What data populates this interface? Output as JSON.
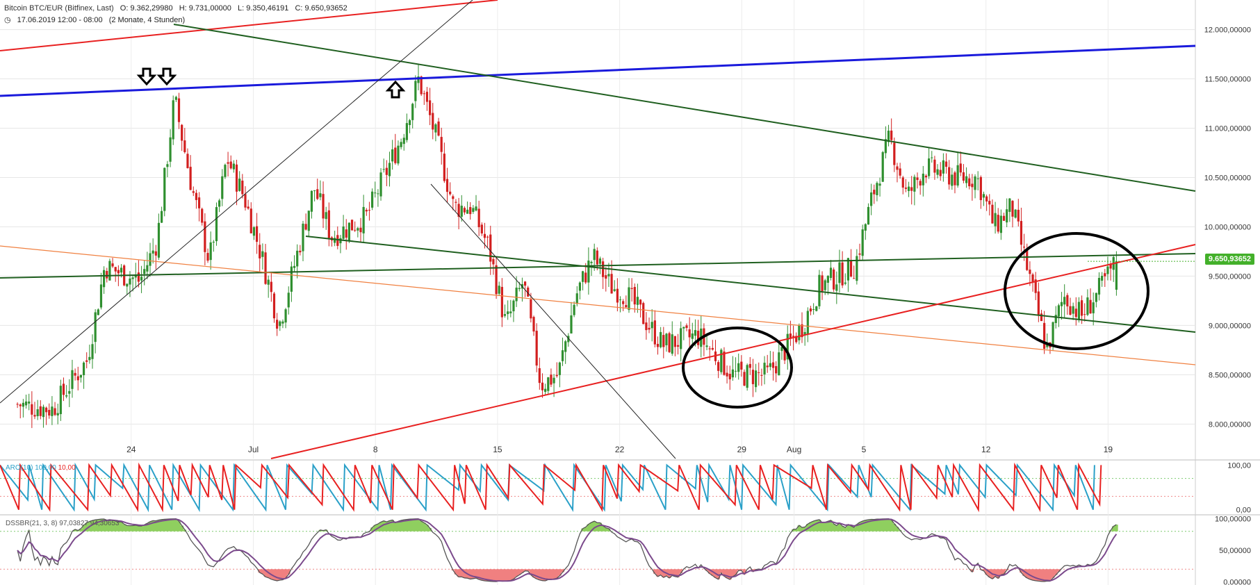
{
  "header": {
    "instrument": "Bitcoin BTC/EUR (Bitfinex, Last)",
    "open": "O: 9.362,29980",
    "high": "H: 9.731,00000",
    "low": "L: 9.350,46191",
    "close": "C: 9.650,93652",
    "date": "17.06.2019 12:00 - 08:00",
    "range": "(2 Monate, 4 Stunden)"
  },
  "last_price": "9.650,93652",
  "colors": {
    "up": "#2f8f2f",
    "down": "#d21f1f",
    "blue_line": "#1a1adc",
    "green_line": "#1f5f1f",
    "red_line": "#e82020",
    "orange_line": "#f08040",
    "aro_up": "#2aa0c8",
    "aro_down": "#e82020",
    "dss": "#7b4a8c",
    "dss_fill_top": "#8fcf5f",
    "dss_fill_bottom": "#f08080",
    "price_tag": "#43b02a"
  },
  "indicators": {
    "aro": {
      "name": "ARO(10)",
      "up": "100,00",
      "down": "10,00"
    },
    "dss": {
      "name": "DSSBR(21, 3, 8)",
      "v1": "97,03827",
      "v2": "94,30653"
    }
  },
  "chart_data": [
    {
      "type": "candlestick",
      "title": "Bitcoin BTC/EUR (Bitfinex, Last)",
      "x_tick_labels": [
        "24",
        "Jul",
        "8",
        "15",
        "22",
        "29",
        "Aug",
        "5",
        "12",
        "19"
      ],
      "y_tick_labels": [
        "12.000,00000",
        "11.500,00000",
        "11.000,00000",
        "10.500,00000",
        "10.000,00000",
        "9.500,00000",
        "9.000,00000",
        "8.500,00000",
        "8.000,00000"
      ],
      "ylim": [
        7650,
        12300
      ],
      "grid": true,
      "anchor_points": [
        {
          "date": "2019-06-17",
          "close": 8200
        },
        {
          "date": "2019-06-19",
          "close": 8150
        },
        {
          "date": "2019-06-21",
          "close": 8650
        },
        {
          "date": "2019-06-22",
          "close": 9600
        },
        {
          "date": "2019-06-24",
          "close": 9450
        },
        {
          "date": "2019-06-25",
          "close": 9850
        },
        {
          "date": "2019-06-26",
          "close": 11300
        },
        {
          "date": "2019-06-27",
          "close": 10400
        },
        {
          "date": "2019-06-28",
          "close": 9650
        },
        {
          "date": "2019-06-29",
          "close": 10700
        },
        {
          "date": "2019-06-30",
          "close": 10300
        },
        {
          "date": "2019-07-01",
          "close": 9700
        },
        {
          "date": "2019-07-02",
          "close": 9000
        },
        {
          "date": "2019-07-03",
          "close": 9700
        },
        {
          "date": "2019-07-04",
          "close": 10400
        },
        {
          "date": "2019-07-05",
          "close": 9900
        },
        {
          "date": "2019-07-07",
          "close": 10100
        },
        {
          "date": "2019-07-09",
          "close": 10900
        },
        {
          "date": "2019-07-10",
          "close": 11500
        },
        {
          "date": "2019-07-11",
          "close": 10900
        },
        {
          "date": "2019-07-12",
          "close": 10200
        },
        {
          "date": "2019-07-13",
          "close": 10200
        },
        {
          "date": "2019-07-14",
          "close": 9800
        },
        {
          "date": "2019-07-15",
          "close": 9000
        },
        {
          "date": "2019-07-16",
          "close": 9450
        },
        {
          "date": "2019-07-17",
          "close": 8400
        },
        {
          "date": "2019-07-18",
          "close": 8500
        },
        {
          "date": "2019-07-19",
          "close": 9300
        },
        {
          "date": "2019-07-20",
          "close": 9700
        },
        {
          "date": "2019-07-21",
          "close": 9400
        },
        {
          "date": "2019-07-22",
          "close": 9300
        },
        {
          "date": "2019-07-24",
          "close": 8800
        },
        {
          "date": "2019-07-26",
          "close": 8900
        },
        {
          "date": "2019-07-28",
          "close": 8500
        },
        {
          "date": "2019-07-30",
          "close": 8500
        },
        {
          "date": "2019-08-01",
          "close": 9000
        },
        {
          "date": "2019-08-02",
          "close": 9400
        },
        {
          "date": "2019-08-04",
          "close": 9600
        },
        {
          "date": "2019-08-05",
          "close": 10300
        },
        {
          "date": "2019-08-06",
          "close": 10900
        },
        {
          "date": "2019-08-07",
          "close": 10300
        },
        {
          "date": "2019-08-08",
          "close": 10600
        },
        {
          "date": "2019-08-10",
          "close": 10500
        },
        {
          "date": "2019-08-11",
          "close": 10500
        },
        {
          "date": "2019-08-12",
          "close": 10000
        },
        {
          "date": "2019-08-13",
          "close": 10200
        },
        {
          "date": "2019-08-14",
          "close": 9500
        },
        {
          "date": "2019-08-15",
          "close": 8750
        },
        {
          "date": "2019-08-16",
          "close": 9300
        },
        {
          "date": "2019-08-17",
          "close": 9100
        },
        {
          "date": "2019-08-18",
          "close": 9350
        },
        {
          "date": "2019-08-19",
          "close": 9650
        }
      ]
    },
    {
      "type": "line",
      "title": "ARO(10)",
      "series": [
        {
          "name": "100,00"
        },
        {
          "name": "10,00"
        }
      ],
      "y_tick_labels": [
        "100,00",
        "0,00"
      ],
      "ylim": [
        -10,
        110
      ]
    },
    {
      "type": "line",
      "title": "DSSBR(21, 3, 8)",
      "series": [
        {
          "name": "97,03827"
        },
        {
          "name": "94,30653"
        }
      ],
      "y_tick_labels": [
        "100,00000",
        "50,00000",
        "0,00000"
      ],
      "ylim": [
        -5,
        105
      ]
    }
  ]
}
